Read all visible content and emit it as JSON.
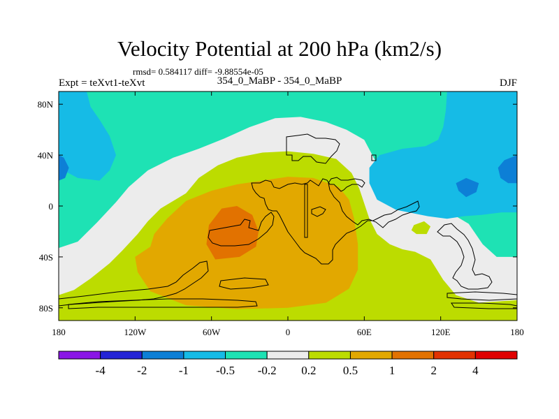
{
  "header": {
    "title": "Velocity Potential at 200 hPa (km2/s)",
    "stats": "rmsd= 0.584117 diff= -9.88554e-05",
    "left_label": "Expt = teXvt1-teXvt",
    "center_label": "354_0_MaBP - 354_0_MaBP",
    "right_label": "DJF"
  },
  "chart_data": {
    "type": "heatmap",
    "title": "Velocity Potential at 200 hPa (km2/s)",
    "xlabel": "",
    "ylabel": "",
    "xlim": [
      -180,
      180
    ],
    "ylim": [
      -90,
      90
    ],
    "x_ticks": [
      -180,
      -120,
      -60,
      0,
      60,
      120,
      180
    ],
    "x_tick_labels": [
      "180",
      "120W",
      "60W",
      "0",
      "60E",
      "120E",
      "180"
    ],
    "y_ticks": [
      80,
      40,
      0,
      -40,
      -80
    ],
    "y_tick_labels": [
      "80N",
      "40N",
      "0",
      "40S",
      "80S"
    ],
    "colorbar": {
      "levels": [
        -4,
        -2,
        -1,
        -0.5,
        -0.2,
        0.2,
        0.5,
        1,
        2,
        4
      ],
      "labels": [
        "-4",
        "-2",
        "-1",
        "-0.5",
        "-0.2",
        "0.2",
        "0.5",
        "1",
        "2",
        "4"
      ],
      "colors": [
        "#8a16e6",
        "#2424d6",
        "#0d7fd6",
        "#16bbe6",
        "#1ee2b4",
        "#ececec",
        "#bcdc00",
        "#e2a800",
        "#e27200",
        "#e23200",
        "#e00000"
      ]
    },
    "regions": [
      {
        "name": "background-neutral",
        "level_index": 5,
        "points": [
          [
            -180,
            90
          ],
          [
            180,
            90
          ],
          [
            180,
            -90
          ],
          [
            -180,
            -90
          ]
        ]
      },
      {
        "name": "northern-teal-band",
        "level_index": 4,
        "points": [
          [
            -180,
            90
          ],
          [
            180,
            90
          ],
          [
            180,
            -40
          ],
          [
            164,
            -40
          ],
          [
            153,
            -30
          ],
          [
            142,
            -14
          ],
          [
            132,
            -8
          ],
          [
            118,
            -6
          ],
          [
            100,
            -5
          ],
          [
            85,
            -3
          ],
          [
            78,
            3
          ],
          [
            75,
            18
          ],
          [
            70,
            33
          ],
          [
            60,
            52
          ],
          [
            46,
            60
          ],
          [
            30,
            66
          ],
          [
            10,
            70
          ],
          [
            -10,
            69
          ],
          [
            -30,
            62
          ],
          [
            -50,
            53
          ],
          [
            -70,
            45
          ],
          [
            -90,
            38
          ],
          [
            -110,
            28
          ],
          [
            -125,
            15
          ],
          [
            -135,
            3
          ],
          [
            -150,
            -13
          ],
          [
            -165,
            -28
          ],
          [
            -180,
            -33
          ]
        ]
      },
      {
        "name": "southern-teal-strip",
        "level_index": 4,
        "points": [
          [
            -180,
            -90
          ],
          [
            -180,
            -78
          ],
          [
            -160,
            -80
          ],
          [
            -140,
            -85
          ],
          [
            -120,
            -90
          ]
        ]
      },
      {
        "name": "positive-0.2-west",
        "level_index": 6,
        "points": [
          [
            -180,
            -90
          ],
          [
            -180,
            -70
          ],
          [
            -168,
            -66
          ],
          [
            -155,
            -57
          ],
          [
            -140,
            -45
          ],
          [
            -130,
            -35
          ],
          [
            -118,
            -22
          ],
          [
            -110,
            -12
          ],
          [
            -100,
            -2
          ],
          [
            -80,
            10
          ],
          [
            -70,
            22
          ],
          [
            -55,
            32
          ],
          [
            -40,
            38
          ],
          [
            -20,
            42
          ],
          [
            0,
            43
          ],
          [
            20,
            41
          ],
          [
            38,
            37
          ],
          [
            50,
            26
          ],
          [
            56,
            14
          ],
          [
            60,
            2
          ],
          [
            64,
            -10
          ],
          [
            70,
            -22
          ],
          [
            80,
            -30
          ],
          [
            90,
            -34
          ],
          [
            100,
            -36
          ],
          [
            112,
            -42
          ],
          [
            122,
            -58
          ],
          [
            132,
            -70
          ],
          [
            150,
            -76
          ],
          [
            180,
            -74
          ],
          [
            180,
            -90
          ]
        ]
      },
      {
        "name": "positive-0.2-pacific-spot",
        "level_index": 6,
        "points": [
          [
            99,
            -15
          ],
          [
            107,
            -12
          ],
          [
            112,
            -16
          ],
          [
            109,
            -22
          ],
          [
            101,
            -22
          ],
          [
            97,
            -19
          ]
        ]
      },
      {
        "name": "positive-0.5-core",
        "level_index": 7,
        "points": [
          [
            -108,
            -32
          ],
          [
            -120,
            -40
          ],
          [
            -118,
            -52
          ],
          [
            -108,
            -67
          ],
          [
            -80,
            -78
          ],
          [
            -40,
            -81
          ],
          [
            0,
            -80
          ],
          [
            30,
            -76
          ],
          [
            48,
            -65
          ],
          [
            55,
            -50
          ],
          [
            55,
            -30
          ],
          [
            52,
            -10
          ],
          [
            48,
            5
          ],
          [
            40,
            15
          ],
          [
            20,
            22
          ],
          [
            0,
            23
          ],
          [
            -20,
            20
          ],
          [
            -40,
            17
          ],
          [
            -60,
            12
          ],
          [
            -80,
            4
          ],
          [
            -95,
            -10
          ],
          [
            -105,
            -22
          ]
        ]
      },
      {
        "name": "positive-1-center",
        "level_index": 8,
        "points": [
          [
            -52,
            -2
          ],
          [
            -40,
            0
          ],
          [
            -28,
            -7
          ],
          [
            -23,
            -20
          ],
          [
            -25,
            -32
          ],
          [
            -38,
            -40
          ],
          [
            -57,
            -42
          ],
          [
            -64,
            -30
          ],
          [
            -62,
            -15
          ]
        ]
      },
      {
        "name": "negative-0.5-northwest",
        "level_index": 3,
        "points": [
          [
            -180,
            90
          ],
          [
            -180,
            30
          ],
          [
            -165,
            22
          ],
          [
            -148,
            20
          ],
          [
            -140,
            28
          ],
          [
            -135,
            40
          ],
          [
            -140,
            55
          ],
          [
            -148,
            68
          ],
          [
            -155,
            78
          ],
          [
            -158,
            90
          ]
        ]
      },
      {
        "name": "negative-0.5-east",
        "level_index": 3,
        "points": [
          [
            180,
            90
          ],
          [
            180,
            -5
          ],
          [
            168,
            -5
          ],
          [
            152,
            -7
          ],
          [
            138,
            -8
          ],
          [
            125,
            -10
          ],
          [
            110,
            -8
          ],
          [
            85,
            -3
          ],
          [
            70,
            5
          ],
          [
            64,
            18
          ],
          [
            64,
            30
          ],
          [
            72,
            40
          ],
          [
            90,
            45
          ],
          [
            108,
            47
          ],
          [
            118,
            52
          ],
          [
            122,
            62
          ],
          [
            124,
            75
          ],
          [
            125,
            90
          ]
        ]
      },
      {
        "name": "negative-1-northwest",
        "level_index": 2,
        "points": [
          [
            -180,
            40
          ],
          [
            -176,
            38
          ],
          [
            -172,
            30
          ],
          [
            -175,
            22
          ],
          [
            -180,
            20
          ]
        ]
      },
      {
        "name": "negative-1-east-a",
        "level_index": 2,
        "points": [
          [
            180,
            40
          ],
          [
            170,
            36
          ],
          [
            165,
            30
          ],
          [
            167,
            22
          ],
          [
            173,
            18
          ],
          [
            180,
            18
          ]
        ]
      },
      {
        "name": "negative-1-east-b",
        "level_index": 2,
        "points": [
          [
            132,
            18
          ],
          [
            140,
            22
          ],
          [
            150,
            18
          ],
          [
            148,
            11
          ],
          [
            140,
            7
          ],
          [
            134,
            12
          ]
        ]
      }
    ],
    "coastline_note": "Idealised land-mask outlines drawn as black lines"
  }
}
